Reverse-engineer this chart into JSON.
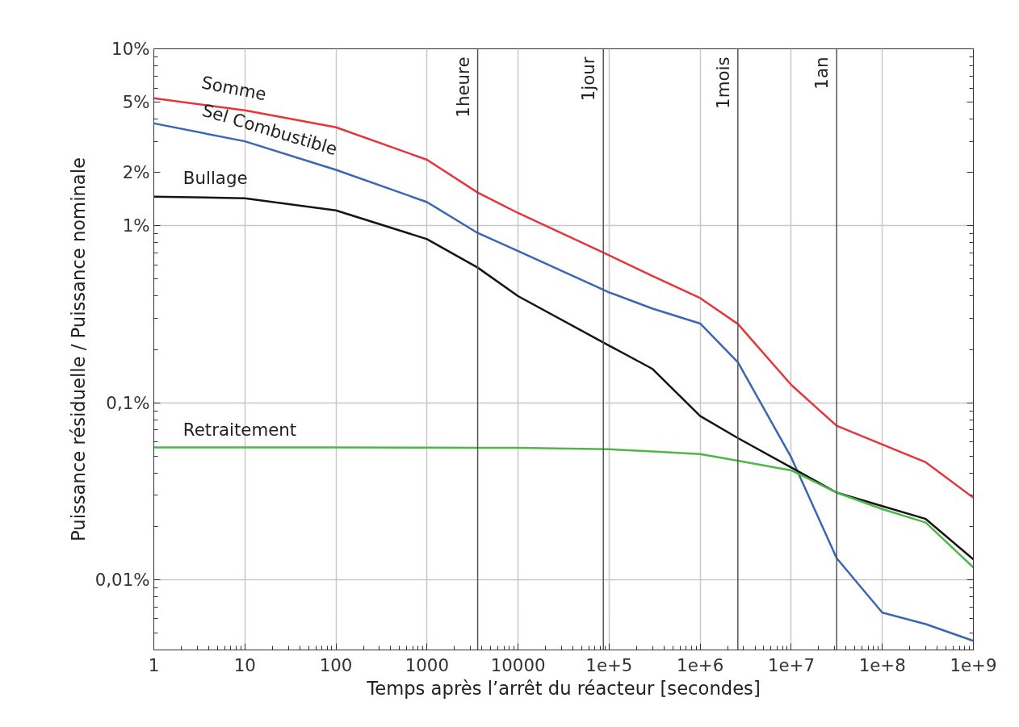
{
  "chart_data": {
    "type": "line",
    "xlabel": "Temps après l’arrêt du réacteur [secondes]",
    "ylabel": "Puissance résiduelle / Puissance nominale",
    "log": "xy",
    "grid": true,
    "xlim": [
      1,
      1000000000
    ],
    "ylim": [
      0.004,
      10
    ],
    "xticks": [
      1,
      10,
      100,
      1000,
      10000,
      {
        "value": 100000,
        "label": "1e+5"
      },
      {
        "value": 1000000,
        "label": "1e+6"
      },
      {
        "value": 10000000,
        "label": "1e+7"
      },
      {
        "value": 100000000,
        "label": "1e+8"
      },
      {
        "value": 1000000000,
        "label": "1e+9"
      }
    ],
    "yticks": [
      {
        "value": 0.01,
        "label": "0,01%"
      },
      {
        "value": 0.1,
        "label": "0,1%"
      },
      {
        "value": 1,
        "label": "1%"
      },
      {
        "value": 2,
        "label": "2%"
      },
      {
        "value": 5,
        "label": "5%"
      },
      {
        "value": 10,
        "label": "10%"
      }
    ],
    "x": [
      1,
      10,
      100,
      1000,
      3600,
      10000,
      100000,
      300000,
      1000000,
      2600000,
      10000000,
      31500000,
      100000000,
      300000000,
      1000000000
    ],
    "series": [
      {
        "name": "Somme",
        "color": "#e4363c",
        "values": [
          5.26,
          4.49,
          3.6,
          2.36,
          1.54,
          1.18,
          0.68,
          0.52,
          0.39,
          0.278,
          0.126,
          0.074,
          0.058,
          0.046,
          0.029
        ]
      },
      {
        "name": "Sel Combustible",
        "color": "#3a66b4",
        "values": [
          3.79,
          3.0,
          2.07,
          1.36,
          0.91,
          0.72,
          0.42,
          0.34,
          0.28,
          0.169,
          0.049,
          0.0132,
          0.0065,
          0.0056,
          0.0045
        ]
      },
      {
        "name": "Bullage",
        "color": "#141414",
        "values": [
          1.46,
          1.43,
          1.22,
          0.84,
          0.58,
          0.4,
          0.21,
          0.155,
          0.084,
          0.063,
          0.043,
          0.031,
          0.026,
          0.022,
          0.013
        ]
      },
      {
        "name": "Retraitement",
        "color": "#4cb848",
        "values": [
          0.0558,
          0.0558,
          0.0558,
          0.0557,
          0.0556,
          0.0555,
          0.0545,
          0.053,
          0.0512,
          0.047,
          0.0414,
          0.031,
          0.025,
          0.021,
          0.0117
        ]
      }
    ],
    "ref_lines": [
      {
        "axis": "x",
        "value": 3600,
        "label": "1heure"
      },
      {
        "axis": "x",
        "value": 86400,
        "label": "1jour"
      },
      {
        "axis": "x",
        "value": 2592000,
        "label": "1mois"
      },
      {
        "axis": "x",
        "value": 31536000,
        "label": "1an"
      }
    ]
  }
}
